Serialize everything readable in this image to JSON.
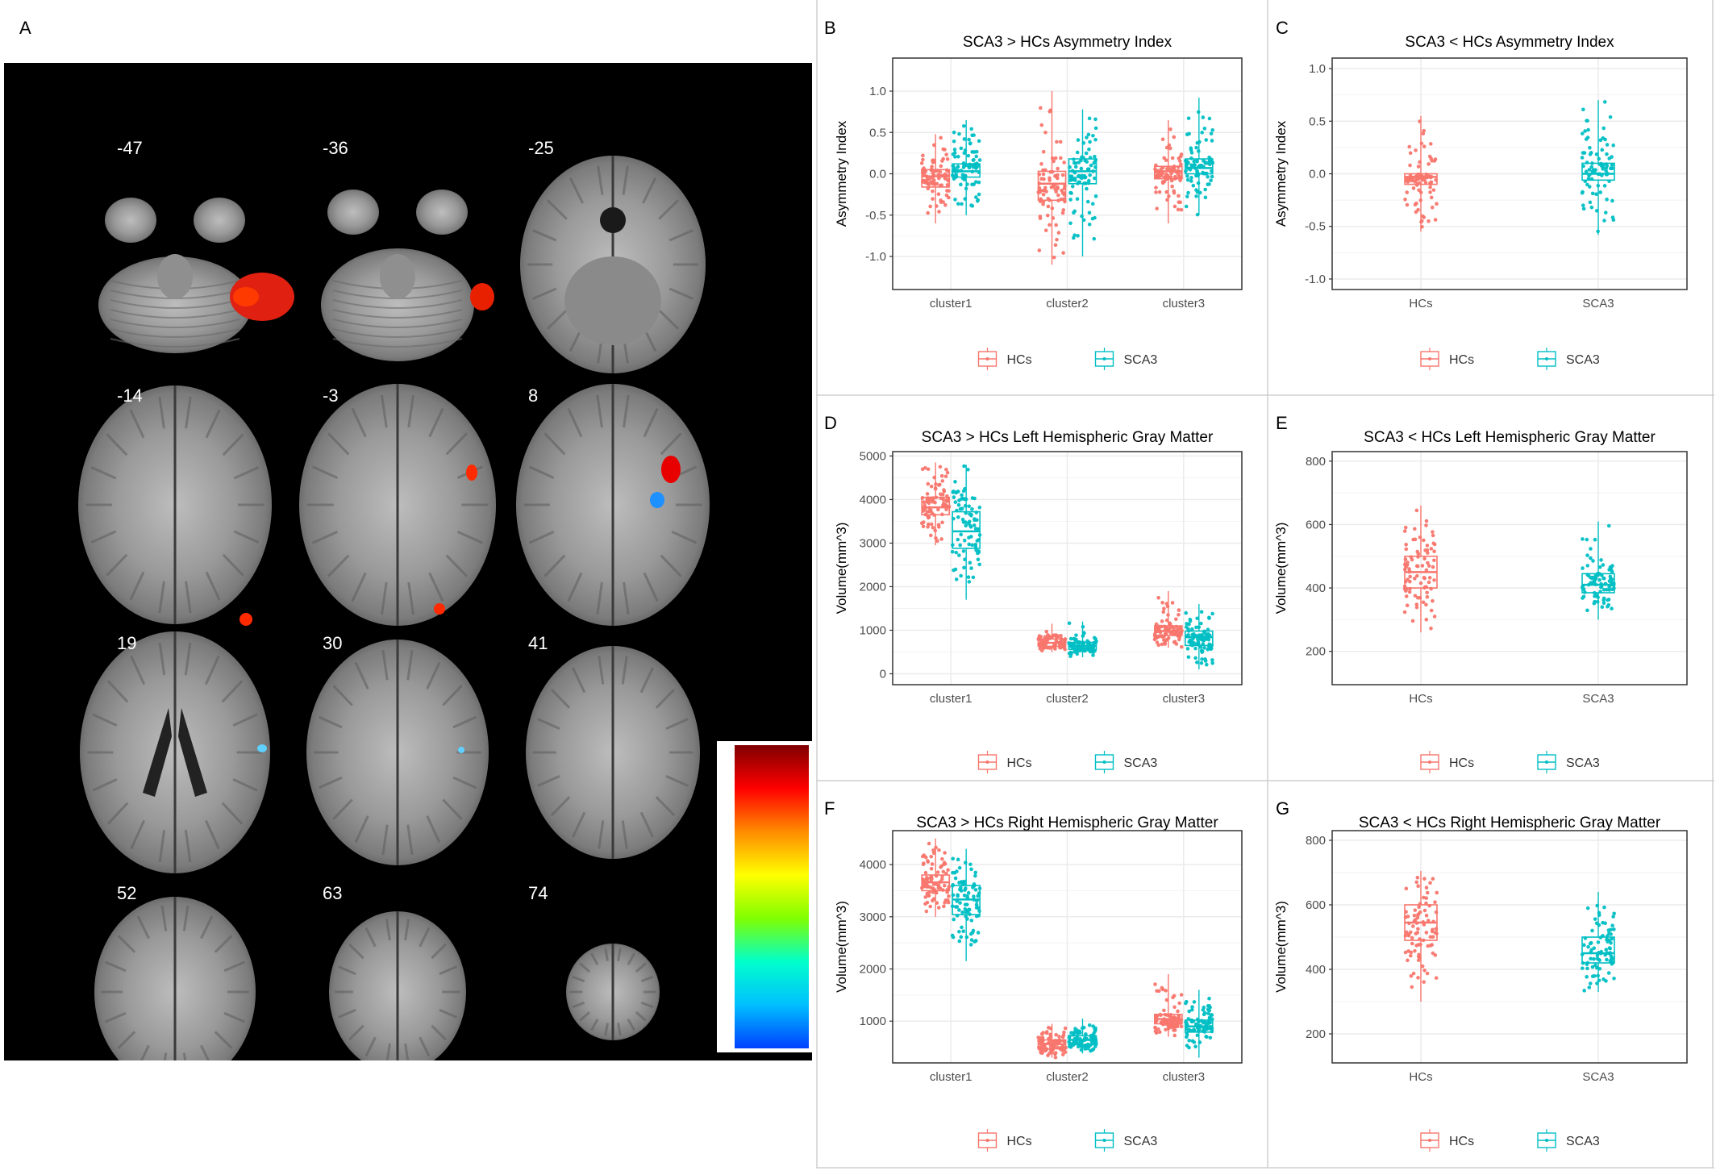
{
  "figure": {
    "panel_a": {
      "letter": "A",
      "slice_labels": [
        "-47",
        "-36",
        "-25",
        "-14",
        "-3",
        "8",
        "19",
        "30",
        "41",
        "52",
        "63",
        "74"
      ],
      "colorbar": {
        "colors": [
          "#7f0000",
          "#ff0000",
          "#ff8c00",
          "#ffff00",
          "#7fff00",
          "#00ffcc",
          "#00bfff",
          "#0040ff"
        ]
      }
    },
    "legend": {
      "entries": [
        "HCs",
        "SCA3"
      ]
    },
    "colors": {
      "HCs": "#f8766d",
      "SCA3": "#00bfc4",
      "grid": "#ebebeb",
      "frame": "#333333"
    }
  },
  "chart_data": [
    {
      "id": "B",
      "letter": "B",
      "type": "box",
      "title": "SCA3 > HCs Asymmetry Index",
      "ylabel": "Asymmetry Index",
      "xlabel": "",
      "categories": [
        "cluster1",
        "cluster2",
        "cluster3"
      ],
      "ylim": [
        -1.4,
        1.4
      ],
      "yticks": [
        -1.0,
        -0.5,
        0.0,
        0.5,
        1.0
      ],
      "tick_labels": [
        "-1.0",
        "-0.5",
        "0.0",
        "0.5",
        "1.0"
      ],
      "series": [
        {
          "name": "HCs",
          "boxes": [
            {
              "min": -0.6,
              "q1": -0.16,
              "median": -0.03,
              "q3": 0.05,
              "max": 0.48
            },
            {
              "min": -1.1,
              "q1": -0.32,
              "median": -0.12,
              "q3": 0.03,
              "max": 1.0
            },
            {
              "min": -0.6,
              "q1": -0.06,
              "median": 0.03,
              "q3": 0.09,
              "max": 0.65
            }
          ]
        },
        {
          "name": "SCA3",
          "boxes": [
            {
              "min": -0.5,
              "q1": -0.04,
              "median": 0.03,
              "q3": 0.12,
              "max": 0.65
            },
            {
              "min": -1.0,
              "q1": -0.12,
              "median": 0.03,
              "q3": 0.18,
              "max": 0.78
            },
            {
              "min": -0.5,
              "q1": 0.0,
              "median": 0.07,
              "q3": 0.18,
              "max": 0.92
            }
          ]
        }
      ]
    },
    {
      "id": "C",
      "letter": "C",
      "type": "box",
      "title": "SCA3 < HCs Asymmetry Index",
      "ylabel": "Asymmetry Index",
      "xlabel": "",
      "categories": [
        "HCs",
        "SCA3"
      ],
      "ylim": [
        -1.1,
        1.1
      ],
      "yticks": [
        -1.0,
        -0.5,
        0.0,
        0.5,
        1.0
      ],
      "tick_labels": [
        "-1.0",
        "-0.5",
        "0.0",
        "0.5",
        "1.0"
      ],
      "series": [
        {
          "name": "HCs",
          "slot": 0,
          "boxes": [
            {
              "min": -0.55,
              "q1": -0.1,
              "median": -0.03,
              "q3": 0.0,
              "max": 0.55
            }
          ]
        },
        {
          "name": "SCA3",
          "slot": 1,
          "boxes": [
            {
              "min": -0.58,
              "q1": -0.06,
              "median": 0.0,
              "q3": 0.1,
              "max": 0.7
            }
          ]
        }
      ]
    },
    {
      "id": "D",
      "letter": "D",
      "type": "box",
      "title": "SCA3 > HCs Left Hemispheric Gray Matter",
      "ylabel": "Volume(mm^3)",
      "xlabel": "",
      "categories": [
        "cluster1",
        "cluster2",
        "cluster3"
      ],
      "ylim": [
        -250,
        5100
      ],
      "yticks": [
        0,
        1000,
        2000,
        3000,
        4000,
        5000
      ],
      "tick_labels": [
        "0",
        "1000",
        "2000",
        "3000",
        "4000",
        "5000"
      ],
      "series": [
        {
          "name": "HCs",
          "boxes": [
            {
              "min": 2950,
              "q1": 3650,
              "median": 3820,
              "q3": 4050,
              "max": 4850
            },
            {
              "min": 500,
              "q1": 630,
              "median": 710,
              "q3": 800,
              "max": 1150
            },
            {
              "min": 600,
              "q1": 880,
              "median": 980,
              "q3": 1100,
              "max": 1900
            }
          ]
        },
        {
          "name": "SCA3",
          "boxes": [
            {
              "min": 1700,
              "q1": 2880,
              "median": 3270,
              "q3": 3720,
              "max": 4800
            },
            {
              "min": 380,
              "q1": 560,
              "median": 640,
              "q3": 720,
              "max": 1200
            },
            {
              "min": 100,
              "q1": 650,
              "median": 840,
              "q3": 980,
              "max": 1600
            }
          ]
        }
      ]
    },
    {
      "id": "E",
      "letter": "E",
      "type": "box",
      "title": "SCA3 < HCs Left Hemispheric Gray Matter",
      "ylabel": "Volume(mm^3)",
      "xlabel": "",
      "categories": [
        "HCs",
        "SCA3"
      ],
      "ylim": [
        95,
        830
      ],
      "yticks": [
        200,
        400,
        600,
        800
      ],
      "tick_labels": [
        "200",
        "400",
        "600",
        "800"
      ],
      "series": [
        {
          "name": "HCs",
          "slot": 0,
          "boxes": [
            {
              "min": 260,
              "q1": 400,
              "median": 450,
              "q3": 500,
              "max": 660
            }
          ]
        },
        {
          "name": "SCA3",
          "slot": 1,
          "boxes": [
            {
              "min": 300,
              "q1": 385,
              "median": 410,
              "q3": 445,
              "max": 610
            }
          ]
        }
      ]
    },
    {
      "id": "F",
      "letter": "F",
      "type": "box",
      "title": "SCA3 > HCs Right Hemispheric Gray Matter",
      "ylabel": "Volume(mm^3)",
      "xlabel": "",
      "categories": [
        "cluster1",
        "cluster2",
        "cluster3"
      ],
      "ylim": [
        200,
        4650
      ],
      "yticks": [
        1000,
        2000,
        3000,
        4000
      ],
      "tick_labels": [
        "1000",
        "2000",
        "3000",
        "4000"
      ],
      "series": [
        {
          "name": "HCs",
          "boxes": [
            {
              "min": 3000,
              "q1": 3500,
              "median": 3660,
              "q3": 3800,
              "max": 4500
            },
            {
              "min": 300,
              "q1": 470,
              "median": 560,
              "q3": 640,
              "max": 950
            },
            {
              "min": 700,
              "q1": 950,
              "median": 1040,
              "q3": 1130,
              "max": 1900
            }
          ]
        },
        {
          "name": "SCA3",
          "boxes": [
            {
              "min": 2150,
              "q1": 3040,
              "median": 3330,
              "q3": 3600,
              "max": 4300
            },
            {
              "min": 380,
              "q1": 550,
              "median": 640,
              "q3": 720,
              "max": 1050
            },
            {
              "min": 300,
              "q1": 790,
              "median": 900,
              "q3": 1020,
              "max": 1600
            }
          ]
        }
      ]
    },
    {
      "id": "G",
      "letter": "G",
      "type": "box",
      "title": "SCA3 < HCs Right Hemispheric Gray Matter",
      "ylabel": "Volume(mm^3)",
      "xlabel": "",
      "categories": [
        "HCs",
        "SCA3"
      ],
      "ylim": [
        110,
        830
      ],
      "yticks": [
        200,
        400,
        600,
        800
      ],
      "tick_labels": [
        "200",
        "400",
        "600",
        "800"
      ],
      "series": [
        {
          "name": "HCs",
          "slot": 0,
          "boxes": [
            {
              "min": 300,
              "q1": 490,
              "median": 545,
              "q3": 600,
              "max": 705
            }
          ]
        },
        {
          "name": "SCA3",
          "slot": 1,
          "boxes": [
            {
              "min": 330,
              "q1": 420,
              "median": 450,
              "q3": 500,
              "max": 640
            }
          ]
        }
      ]
    }
  ]
}
